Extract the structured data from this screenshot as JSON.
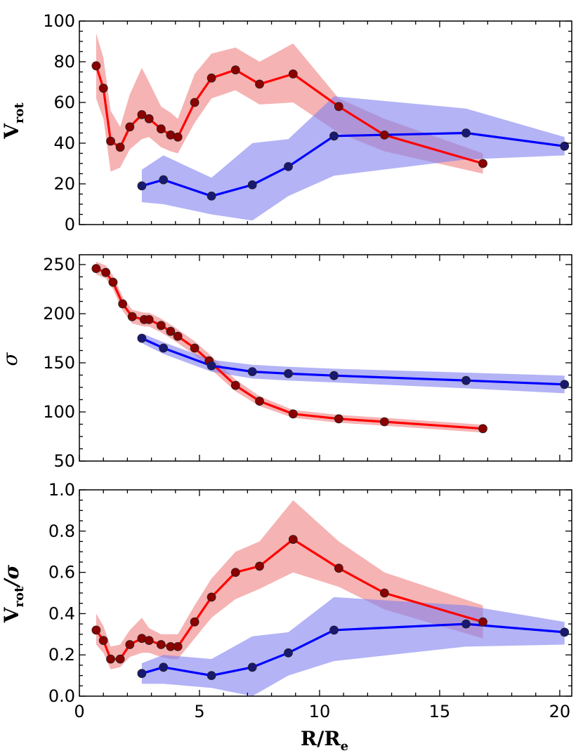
{
  "chart_data": [
    {
      "type": "line",
      "panel": "top",
      "ylabel_main": "V",
      "ylabel_sub": "rot",
      "xlim": [
        0,
        20.5
      ],
      "ylim": [
        0,
        100
      ],
      "yticks": [
        "0",
        "20",
        "40",
        "60",
        "80",
        "100"
      ],
      "series": [
        {
          "name": "red",
          "color": "#ff0000",
          "marker_color": "#8b0000",
          "band_color": "#f08080",
          "x": [
            0.7,
            1.0,
            1.3,
            1.7,
            2.1,
            2.6,
            2.9,
            3.4,
            3.8,
            4.1,
            4.8,
            5.5,
            6.5,
            7.5,
            8.9,
            10.8,
            12.7,
            16.8
          ],
          "y": [
            78,
            67,
            41,
            38,
            48,
            54,
            52,
            47,
            44,
            43,
            60,
            72,
            76,
            69,
            74,
            58,
            44,
            30
          ],
          "lo": [
            62,
            52,
            26,
            28,
            37,
            42,
            43,
            38,
            36,
            35,
            50,
            62,
            66,
            59,
            60,
            45,
            36,
            25
          ],
          "hi": [
            94,
            82,
            56,
            48,
            64,
            77,
            70,
            58,
            55,
            52,
            74,
            84,
            87,
            80,
            89,
            62,
            52,
            35
          ]
        },
        {
          "name": "blue",
          "color": "#0000ff",
          "marker_color": "#191970",
          "band_color": "#8080f0",
          "x": [
            2.6,
            3.5,
            5.5,
            7.2,
            8.7,
            10.6,
            16.1,
            20.2
          ],
          "y": [
            19,
            22,
            14,
            19.5,
            28.5,
            43.5,
            45,
            38.5
          ],
          "lo": [
            11,
            10,
            5,
            2,
            14,
            24,
            32,
            34
          ],
          "hi": [
            27,
            34,
            23,
            40,
            42,
            63,
            57,
            43
          ]
        }
      ]
    },
    {
      "type": "line",
      "panel": "middle",
      "ylabel_main": "σ",
      "xlim": [
        0,
        20.5
      ],
      "ylim": [
        50,
        260
      ],
      "yticks": [
        "50",
        "100",
        "150",
        "200",
        "250"
      ],
      "series": [
        {
          "name": "red",
          "color": "#ff0000",
          "marker_color": "#8b0000",
          "band_color": "#f08080",
          "x": [
            0.7,
            1.1,
            1.4,
            1.8,
            2.2,
            2.7,
            2.9,
            3.4,
            3.8,
            4.1,
            4.8,
            5.4,
            6.5,
            7.5,
            8.9,
            10.8,
            12.7,
            16.8
          ],
          "y": [
            246,
            242,
            232,
            210,
            197,
            194,
            194,
            188,
            182,
            177,
            165,
            152,
            127,
            111,
            98,
            93,
            90,
            83
          ],
          "lo": [
            240,
            236,
            225,
            203,
            190,
            187,
            187,
            181,
            175,
            170,
            158,
            145,
            121,
            106,
            94,
            89,
            86,
            79
          ],
          "hi": [
            253,
            249,
            239,
            217,
            204,
            201,
            201,
            195,
            189,
            184,
            172,
            159,
            133,
            116,
            102,
            97,
            94,
            87
          ]
        },
        {
          "name": "blue",
          "color": "#0000ff",
          "marker_color": "#191970",
          "band_color": "#8080f0",
          "x": [
            2.6,
            3.5,
            5.5,
            7.2,
            8.7,
            10.6,
            16.1,
            20.2
          ],
          "y": [
            175,
            165,
            147,
            141,
            139,
            137,
            132,
            128
          ],
          "lo": [
            170,
            159,
            141,
            134,
            132,
            130,
            124,
            119
          ],
          "hi": [
            180,
            171,
            153,
            148,
            146,
            144,
            140,
            137
          ]
        }
      ]
    },
    {
      "type": "line",
      "panel": "bottom",
      "ylabel_main": "V",
      "ylabel_sub": "rot",
      "ylabel_tail": "/σ",
      "xlabel_main": "R/R",
      "xlabel_sub": "e",
      "xlim": [
        0,
        20.5
      ],
      "ylim": [
        0,
        1.0
      ],
      "yticks": [
        "0.0",
        "0.2",
        "0.4",
        "0.6",
        "0.8",
        "1.0"
      ],
      "xticks": [
        "0",
        "5",
        "10",
        "15",
        "20"
      ],
      "series": [
        {
          "name": "red",
          "color": "#ff0000",
          "marker_color": "#8b0000",
          "band_color": "#f08080",
          "x": [
            0.7,
            1.0,
            1.3,
            1.7,
            2.1,
            2.6,
            2.9,
            3.4,
            3.8,
            4.1,
            4.8,
            5.5,
            6.5,
            7.5,
            8.9,
            10.8,
            12.7,
            16.8
          ],
          "y": [
            0.32,
            0.27,
            0.18,
            0.18,
            0.25,
            0.28,
            0.27,
            0.25,
            0.24,
            0.24,
            0.36,
            0.48,
            0.6,
            0.63,
            0.76,
            0.62,
            0.5,
            0.36
          ],
          "lo": [
            0.25,
            0.21,
            0.13,
            0.14,
            0.19,
            0.21,
            0.21,
            0.19,
            0.18,
            0.18,
            0.28,
            0.38,
            0.47,
            0.52,
            0.6,
            0.53,
            0.42,
            0.28
          ],
          "hi": [
            0.4,
            0.34,
            0.24,
            0.25,
            0.32,
            0.38,
            0.33,
            0.3,
            0.3,
            0.3,
            0.44,
            0.57,
            0.7,
            0.75,
            0.95,
            0.75,
            0.6,
            0.44
          ]
        },
        {
          "name": "blue",
          "color": "#0000ff",
          "marker_color": "#191970",
          "band_color": "#8080f0",
          "x": [
            2.6,
            3.5,
            5.5,
            7.2,
            8.7,
            10.6,
            16.1,
            20.2
          ],
          "y": [
            0.11,
            0.14,
            0.1,
            0.14,
            0.21,
            0.32,
            0.35,
            0.31
          ],
          "lo": [
            0.06,
            0.06,
            0.04,
            0.0,
            0.1,
            0.17,
            0.24,
            0.25
          ],
          "hi": [
            0.16,
            0.2,
            0.18,
            0.29,
            0.31,
            0.48,
            0.44,
            0.36
          ]
        }
      ]
    }
  ]
}
